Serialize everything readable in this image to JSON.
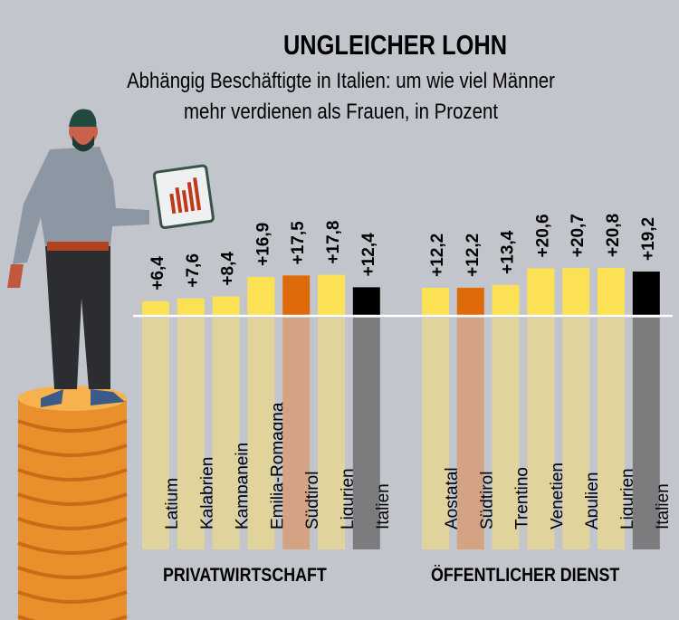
{
  "chart_data": {
    "type": "bar",
    "title": "UNGLEICHER LOHN",
    "subtitle_line1": "Abhängig Beschäftigte in Italien: um wie viel Männer",
    "subtitle_line2": "mehr verdienen als Frauen, in Prozent",
    "unit": "%",
    "groups": [
      {
        "name": "PRIVATWIRTSCHAFT",
        "categories": [
          "Latium",
          "Kalabrien",
          "Kampanein",
          "Emilia-Romagna",
          "Südtirol",
          "Ligurien",
          "Italien"
        ],
        "values": [
          6.4,
          7.6,
          8.4,
          16.9,
          17.5,
          17.8,
          12.4
        ],
        "labels": [
          "+6,4",
          "+7,6",
          "+8,4",
          "+16,9",
          "+17,5",
          "+17,8",
          "+12,4"
        ],
        "highlight": [
          "normal",
          "normal",
          "normal",
          "normal",
          "suedtirol",
          "normal",
          "italien"
        ]
      },
      {
        "name": "ÖFFENTLICHER DIENST",
        "categories": [
          "Aostatal",
          "Südtirol",
          "Trentino",
          "Venetien",
          "Apulien",
          "Ligurien",
          "Italien"
        ],
        "values": [
          12.2,
          12.2,
          13.4,
          20.6,
          20.7,
          20.8,
          19.2
        ],
        "labels": [
          "+12,2",
          "+12,2",
          "+13,4",
          "+20,6",
          "+20,7",
          "+20,8",
          "+19,2"
        ],
        "highlight": [
          "normal",
          "suedtirol",
          "normal",
          "normal",
          "normal",
          "normal",
          "italien"
        ]
      }
    ],
    "ylim": [
      0,
      22
    ],
    "grid": false,
    "legend": "none"
  },
  "colors": {
    "background": "#c2c6cc",
    "bar_normal": "#fbe153",
    "label_normal": "#e0d49c",
    "bar_suedtirol": "#de6a0a",
    "label_suedtirol": "#d3a384",
    "bar_italien": "#000000",
    "label_italien": "#7c7c7e",
    "baseline": "#ffffff"
  }
}
